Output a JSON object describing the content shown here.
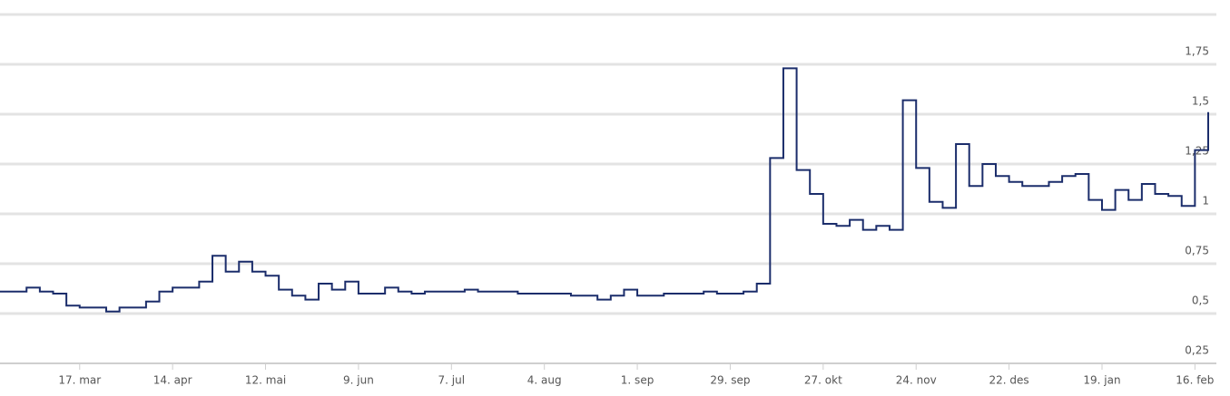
{
  "chart_data": {
    "type": "line",
    "step": true,
    "categories": [
      null,
      null,
      null,
      null,
      null,
      null,
      "17. mar",
      null,
      null,
      null,
      null,
      null,
      null,
      "14. apr",
      null,
      null,
      null,
      null,
      null,
      null,
      "12. mai",
      null,
      null,
      null,
      null,
      null,
      null,
      "9. jun",
      null,
      null,
      null,
      null,
      null,
      null,
      "7. jul",
      null,
      null,
      null,
      null,
      null,
      null,
      "4. aug",
      null,
      null,
      null,
      null,
      null,
      null,
      "1. sep",
      null,
      null,
      null,
      null,
      null,
      null,
      "29. sep",
      null,
      null,
      null,
      null,
      null,
      null,
      "27. okt",
      null,
      null,
      null,
      null,
      null,
      null,
      "24. nov",
      null,
      null,
      null,
      null,
      null,
      null,
      "22. des",
      null,
      null,
      null,
      null,
      null,
      null,
      "19. jan",
      null,
      null,
      null,
      null,
      null,
      null,
      "16. feb",
      null
    ],
    "values": [
      0.61,
      0.61,
      0.63,
      0.61,
      0.6,
      0.54,
      0.53,
      0.53,
      0.51,
      0.53,
      0.53,
      0.56,
      0.61,
      0.63,
      0.63,
      0.66,
      0.79,
      0.71,
      0.76,
      0.71,
      0.69,
      0.62,
      0.59,
      0.57,
      0.65,
      0.62,
      0.66,
      0.6,
      0.6,
      0.63,
      0.61,
      0.6,
      0.61,
      0.61,
      0.61,
      0.62,
      0.61,
      0.61,
      0.61,
      0.6,
      0.6,
      0.6,
      0.6,
      0.59,
      0.59,
      0.57,
      0.59,
      0.62,
      0.59,
      0.59,
      0.6,
      0.6,
      0.6,
      0.61,
      0.6,
      0.6,
      0.61,
      0.65,
      1.28,
      1.73,
      1.22,
      1.1,
      0.95,
      0.94,
      0.97,
      0.92,
      0.94,
      0.92,
      1.57,
      1.23,
      1.06,
      1.03,
      1.35,
      1.14,
      1.25,
      1.19,
      1.16,
      1.14,
      1.14,
      1.16,
      1.19,
      1.2,
      1.07,
      1.02,
      1.12,
      1.07,
      1.15,
      1.1,
      1.09,
      1.04,
      1.32,
      1.51
    ],
    "color": "#1b2d6b",
    "ylim": [
      0.25,
      2.0
    ],
    "yticks": [
      {
        "value": 0.25,
        "label": "0,25"
      },
      {
        "value": 0.5,
        "label": "0,5"
      },
      {
        "value": 0.75,
        "label": "0,75"
      },
      1,
      {
        "value": 1.25,
        "label": "1,25"
      },
      {
        "value": 1.5,
        "label": "1,5"
      },
      {
        "value": 1.75,
        "label": "1,75"
      }
    ],
    "grid": true
  }
}
